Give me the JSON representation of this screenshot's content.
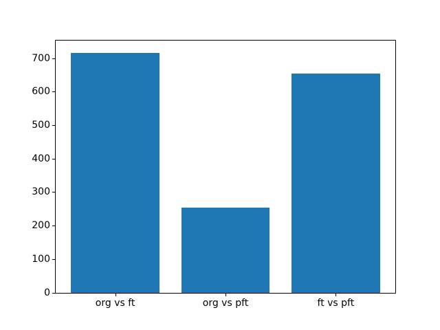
{
  "figure": {
    "background": "#ffffff",
    "spine_color": "#000000",
    "text_color": "#000000"
  },
  "chart_data": {
    "type": "bar",
    "title": "",
    "xlabel": "",
    "ylabel": "",
    "categories": [
      "org vs ft",
      "org vs pft",
      "ft vs pft"
    ],
    "values": [
      718,
      255,
      655
    ],
    "bar_color": "#1f77b4",
    "bar_width_fraction": 0.8,
    "ylim": [
      0,
      754
    ],
    "yticks": [
      0,
      100,
      200,
      300,
      400,
      500,
      600,
      700
    ],
    "grid": false,
    "legend": null
  }
}
